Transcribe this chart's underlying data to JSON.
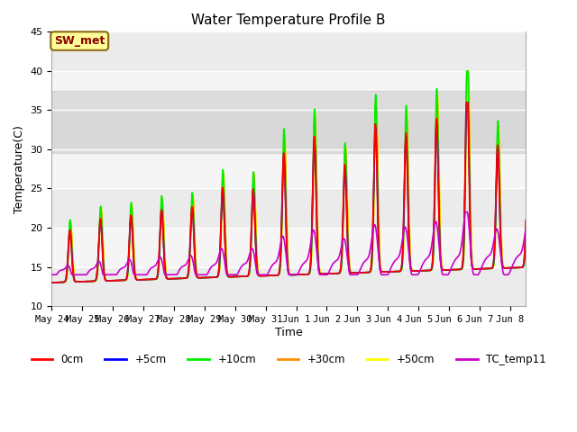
{
  "title": "Water Temperature Profile B",
  "xlabel": "Time",
  "ylabel": "Temperature(C)",
  "ylim": [
    10,
    45
  ],
  "annotation_text": "SW_met",
  "annotation_color": "#8B0000",
  "annotation_bg": "#FFFF99",
  "annotation_border": "#8B6914",
  "shaded_band_lo": 29.5,
  "shaded_band_hi": 37.5,
  "shaded_color": "#CCCCCC",
  "line_colors": {
    "0cm": "#FF0000",
    "+5cm": "#0000FF",
    "+10cm": "#00EE00",
    "+30cm": "#FF8C00",
    "+50cm": "#FFFF00",
    "TC_temp11": "#CC00CC"
  },
  "xtick_labels": [
    "May 24",
    "May 25",
    "May 26",
    "May 27",
    "May 28",
    "May 29",
    "May 30",
    "May 31",
    "Jun 1",
    "Jun 2",
    "Jun 3",
    "Jun 4",
    "Jun 5",
    "Jun 6",
    "Jun 7",
    "Jun 8"
  ],
  "grid_color": "#FFFFFF",
  "axes_bg": "#F0F0F0",
  "plot_bg": "#FFFFFF"
}
